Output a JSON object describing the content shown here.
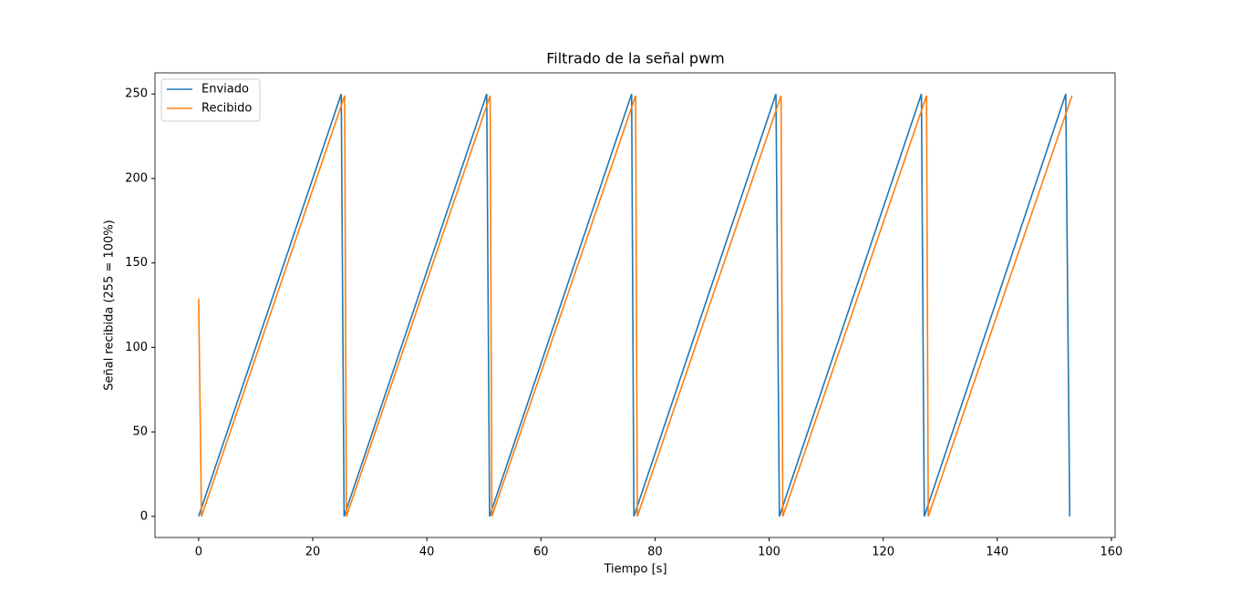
{
  "chart_data": {
    "type": "line",
    "title": "Filtrado de la señal pwm",
    "x_label": "Tiempo [s]",
    "y_label": "Señal recibida (255 = 100%)",
    "xlim": [
      -7.65,
      160.65
    ],
    "ylim": [
      -12.5,
      262.5
    ],
    "xticks": [
      0,
      20,
      40,
      60,
      80,
      100,
      120,
      140,
      160
    ],
    "yticks": [
      0,
      50,
      100,
      150,
      200,
      250
    ],
    "grid": false,
    "legend": "upper-left",
    "series": [
      {
        "name": "Enviado",
        "color": "#1f77b4",
        "x": [
          0,
          25.0,
          25.5,
          50.5,
          51.0,
          75.9,
          76.3,
          101.2,
          101.8,
          126.7,
          127.2,
          152.0,
          152.7
        ],
        "values": [
          0,
          250,
          0,
          250,
          0,
          250,
          0,
          250,
          0,
          250,
          0,
          250,
          0
        ]
      },
      {
        "name": "Recibido",
        "color": "#ff7f0e",
        "x": [
          0,
          0.5,
          25.6,
          25.9,
          51.1,
          51.4,
          76.6,
          76.9,
          102.1,
          102.4,
          127.6,
          127.9,
          153.1
        ],
        "values": [
          129,
          0,
          249,
          0,
          249,
          0,
          249,
          0,
          249,
          0,
          249,
          0,
          249
        ]
      }
    ]
  }
}
